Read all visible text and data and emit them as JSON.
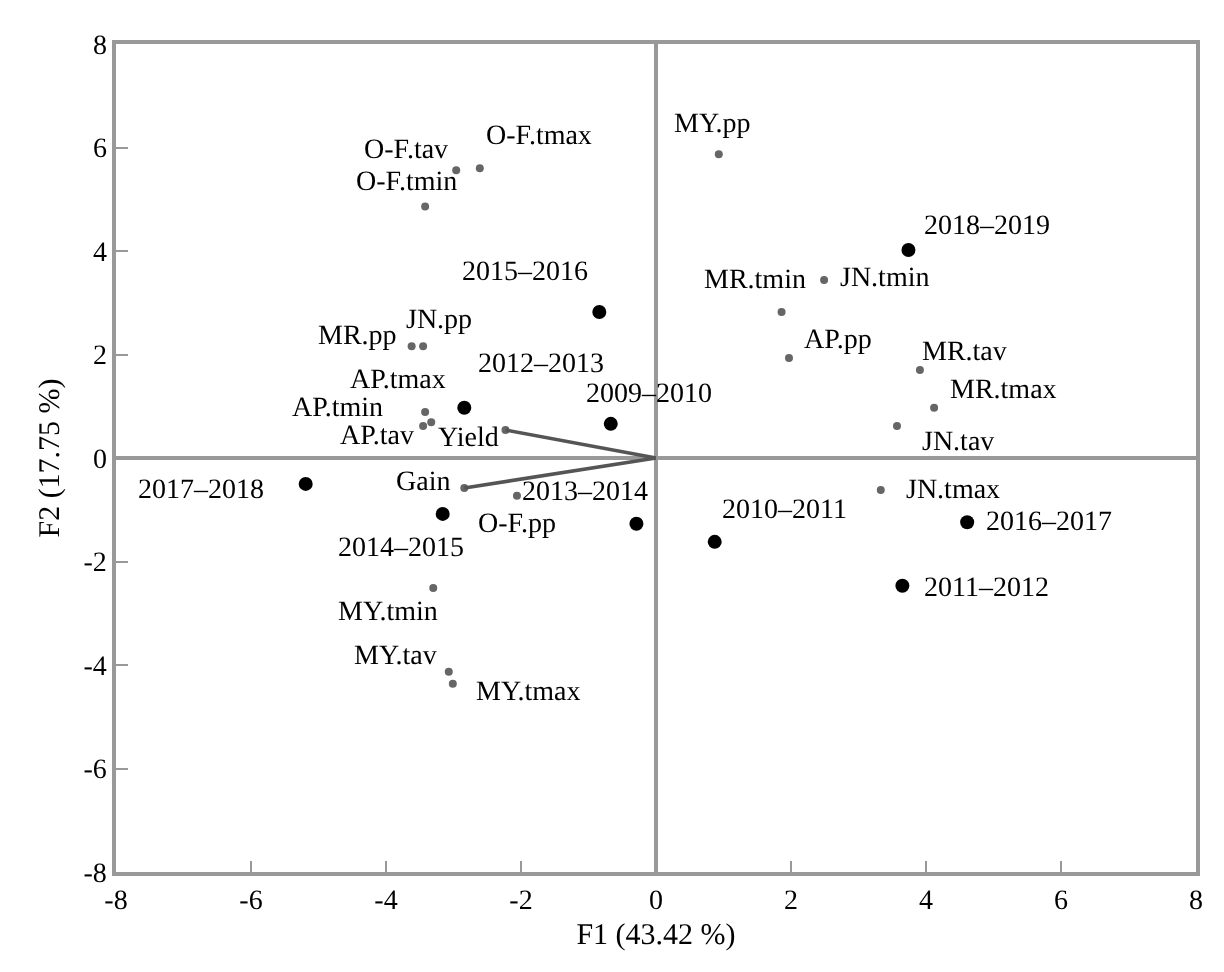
{
  "chart_data": {
    "type": "scatter",
    "xlabel": "F1 (43.42 %)",
    "ylabel": "F2 (17.75 %)",
    "xlim": [
      -8,
      8
    ],
    "ylim": [
      -8,
      8
    ],
    "xticks": [
      -8,
      -6,
      -4,
      -2,
      0,
      2,
      4,
      6,
      8
    ],
    "yticks": [
      -8,
      -6,
      -4,
      -2,
      0,
      2,
      4,
      6,
      8
    ],
    "marker": "circle",
    "series": [
      {
        "color": "#000000",
        "x": [
          3.74,
          -0.84,
          -2.84,
          -0.67,
          -5.19,
          -3.16,
          -0.29,
          0.87,
          4.61,
          3.65
        ],
        "values": [
          4.02,
          2.82,
          0.97,
          0.66,
          -0.5,
          -1.08,
          -1.27,
          -1.62,
          -1.24,
          -2.47
        ]
      },
      {
        "color": "#666666",
        "x": [
          -2.61,
          -2.96,
          -3.42,
          -3.62,
          -3.45,
          -3.42,
          -3.33,
          -3.45,
          -2.23,
          -2.84,
          -2.06,
          -3.3,
          -3.07,
          -3.01,
          0.93,
          1.86,
          2.49,
          1.97,
          3.91,
          4.12,
          3.57,
          3.33
        ],
        "values": [
          5.6,
          5.56,
          4.86,
          2.16,
          2.16,
          0.89,
          0.69,
          0.62,
          0.54,
          -0.58,
          -0.73,
          -2.51,
          -4.13,
          -4.36,
          5.87,
          2.82,
          3.44,
          1.93,
          1.7,
          0.97,
          0.62,
          -0.62
        ]
      },
      {
        "type": "line",
        "marker": "none",
        "color": "#555555",
        "x": [
          0,
          -2.23
        ],
        "values": [
          0,
          0.54
        ]
      },
      {
        "type": "line",
        "marker": "none",
        "color": "#555555",
        "x": [
          0,
          -2.84
        ],
        "values": [
          0,
          -0.58
        ]
      }
    ],
    "annotations": [
      {
        "text": "2018–2019",
        "x": 3.74,
        "y": 4.02
      },
      {
        "text": "2015–2016",
        "x": -0.84,
        "y": 2.82
      },
      {
        "text": "2012–2013",
        "x": -2.84,
        "y": 0.97
      },
      {
        "text": "2009–2010",
        "x": -0.67,
        "y": 0.66
      },
      {
        "text": "2017–2018",
        "x": -5.19,
        "y": -0.5
      },
      {
        "text": "2014–2015",
        "x": -3.16,
        "y": -1.08
      },
      {
        "text": "2013–2014",
        "x": -0.29,
        "y": -1.27
      },
      {
        "text": "2010–2011",
        "x": 0.87,
        "y": -1.62
      },
      {
        "text": "2016–2017",
        "x": 4.61,
        "y": -1.24
      },
      {
        "text": "2011–2012",
        "x": 3.65,
        "y": -2.47
      },
      {
        "text": "O-F.tmax",
        "x": -2.61,
        "y": 5.6
      },
      {
        "text": "O-F.tav",
        "x": -2.96,
        "y": 5.56
      },
      {
        "text": "O-F.tmin",
        "x": -3.42,
        "y": 4.86
      },
      {
        "text": "MR.pp",
        "x": -3.62,
        "y": 2.16
      },
      {
        "text": "JN.pp",
        "x": -3.45,
        "y": 2.16
      },
      {
        "text": "AP.tmin",
        "x": -3.42,
        "y": 0.89
      },
      {
        "text": "AP.tmax",
        "x": -3.33,
        "y": 0.69
      },
      {
        "text": "AP.tav",
        "x": -3.45,
        "y": 0.62
      },
      {
        "text": "Yield",
        "x": -2.23,
        "y": 0.54
      },
      {
        "text": "Gain",
        "x": -2.84,
        "y": -0.58
      },
      {
        "text": "O-F.pp",
        "x": -2.06,
        "y": -0.73
      },
      {
        "text": "MY.tmin",
        "x": -3.3,
        "y": -2.51
      },
      {
        "text": "MY.tav",
        "x": -3.07,
        "y": -4.13
      },
      {
        "text": "MY.tmax",
        "x": -3.01,
        "y": -4.36
      },
      {
        "text": "MY.pp",
        "x": 0.93,
        "y": 5.87
      },
      {
        "text": "MR.tmin",
        "x": 1.86,
        "y": 2.82
      },
      {
        "text": "JN.tmin",
        "x": 2.49,
        "y": 3.44
      },
      {
        "text": "AP.pp",
        "x": 1.97,
        "y": 1.93
      },
      {
        "text": "MR.tav",
        "x": 3.91,
        "y": 1.7
      },
      {
        "text": "MR.tmax",
        "x": 4.12,
        "y": 0.97
      },
      {
        "text": "JN.tav",
        "x": 3.57,
        "y": 0.62
      },
      {
        "text": "JN.tmax",
        "x": 3.33,
        "y": -0.62
      }
    ]
  }
}
